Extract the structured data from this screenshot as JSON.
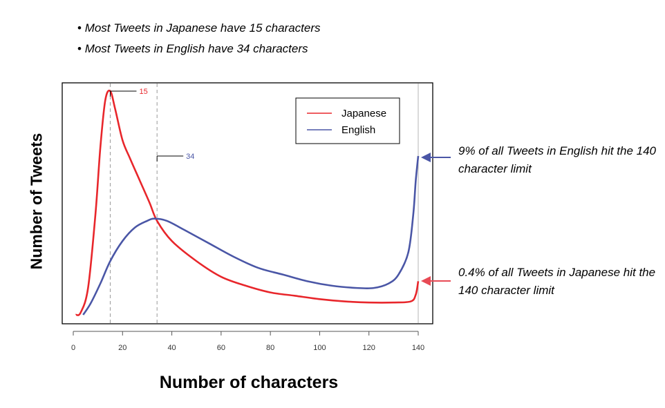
{
  "bullets": [
    "Most Tweets in Japanese have 15 characters",
    "Most Tweets in English have 34 characters"
  ],
  "annotations": {
    "english": "9% of all Tweets in English hit the 140 character limit",
    "japanese": "0.4% of all Tweets in Japanese hit the 140 character limit"
  },
  "colors": {
    "japanese": "#e8262b",
    "english": "#4a56a6",
    "annotation_arrow_english": "#4a56a6",
    "annotation_arrow_japanese": "#e84a55"
  },
  "chart_data": {
    "type": "line",
    "title": "",
    "xlabel": "Number of characters",
    "ylabel": "Number of Tweets",
    "xlim": [
      0,
      140
    ],
    "ylim": [
      0,
      100
    ],
    "xticks": [
      0,
      20,
      40,
      60,
      80,
      100,
      120,
      140
    ],
    "yticks_shown": false,
    "grid": false,
    "legend_position": "top-right",
    "reference_lines": [
      15,
      34,
      140
    ],
    "peak_labels": [
      {
        "series": "Japanese",
        "x": 15,
        "text": "15"
      },
      {
        "series": "English",
        "x": 34,
        "text": "34"
      }
    ],
    "series": [
      {
        "name": "Japanese",
        "color": "#e8262b",
        "points": [
          [
            1,
            0
          ],
          [
            3,
            1
          ],
          [
            6,
            12
          ],
          [
            9,
            45
          ],
          [
            11,
            75
          ],
          [
            13,
            96
          ],
          [
            15,
            100
          ],
          [
            17,
            92
          ],
          [
            20,
            78
          ],
          [
            23,
            70
          ],
          [
            27,
            60
          ],
          [
            31,
            50
          ],
          [
            34,
            42
          ],
          [
            40,
            33
          ],
          [
            50,
            24
          ],
          [
            60,
            17
          ],
          [
            70,
            13
          ],
          [
            80,
            10
          ],
          [
            90,
            8.5
          ],
          [
            100,
            7
          ],
          [
            110,
            6
          ],
          [
            120,
            5.5
          ],
          [
            130,
            5.5
          ],
          [
            137,
            6
          ],
          [
            139,
            9
          ],
          [
            140,
            15
          ]
        ]
      },
      {
        "name": "English",
        "color": "#4a56a6",
        "points": [
          [
            4,
            0
          ],
          [
            7,
            5
          ],
          [
            11,
            14
          ],
          [
            15,
            24
          ],
          [
            20,
            33
          ],
          [
            25,
            39
          ],
          [
            30,
            42
          ],
          [
            33,
            43
          ],
          [
            38,
            42
          ],
          [
            45,
            38
          ],
          [
            55,
            32
          ],
          [
            65,
            26
          ],
          [
            75,
            21
          ],
          [
            85,
            18
          ],
          [
            95,
            15
          ],
          [
            105,
            13
          ],
          [
            115,
            12
          ],
          [
            122,
            12
          ],
          [
            128,
            14
          ],
          [
            132,
            18
          ],
          [
            136,
            28
          ],
          [
            138,
            45
          ],
          [
            139,
            60
          ],
          [
            140,
            71
          ]
        ]
      }
    ]
  }
}
